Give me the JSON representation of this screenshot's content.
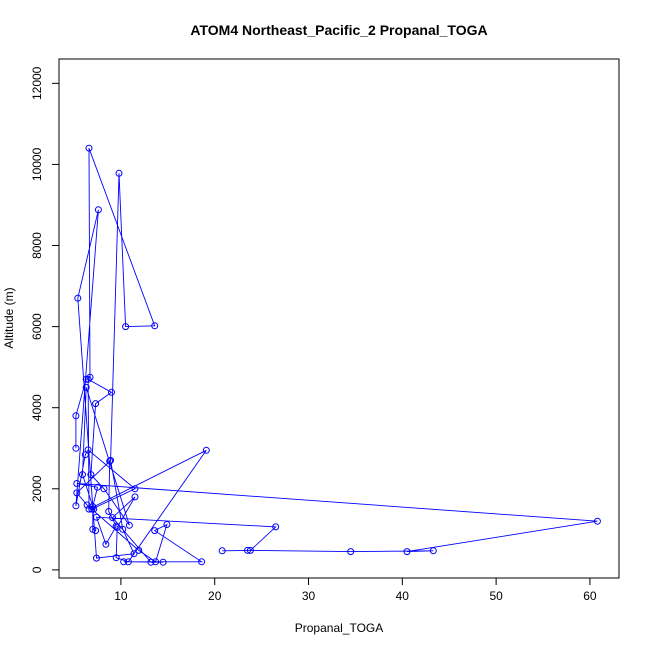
{
  "chart_data": {
    "type": "line",
    "title": "ATOM4 Northeast_Pacific_2 Propanal_TOGA",
    "xlabel": "Propanal_TOGA",
    "ylabel": "Altitude (m)",
    "xlim": [
      3.4,
      63.1
    ],
    "ylim": [
      -200,
      12600
    ],
    "xticks": [
      10,
      20,
      30,
      40,
      50,
      60
    ],
    "yticks": [
      0,
      2000,
      4000,
      6000,
      8000,
      10000,
      12000
    ],
    "grid": false,
    "legend": "none",
    "color": "#0000ff",
    "marker": "open-circle",
    "series": [
      {
        "x": [
          5.2,
          5.2,
          6.3,
          6.7,
          6.6,
          13.6,
          10.5,
          9.8,
          8.9,
          10.2,
          11.4,
          7.4,
          5.4,
          7.6,
          5.2,
          6.2,
          6.5,
          11.5,
          6.9,
          11.9,
          13.7,
          14.9,
          13.6,
          18.6,
          10.3,
          14.5,
          13.2,
          9.1,
          11.5,
          9.6,
          9.5,
          10.8,
          19.1,
          6.6,
          6.5,
          9.0,
          7.3,
          6.8,
          8.2,
          10.9,
          6.3,
          5.9,
          7.1,
          6.4,
          5.3,
          8.8,
          8.7,
          9.5,
          8.4,
          7.4,
          26.5,
          23.8,
          20.8,
          23.5,
          34.5,
          43.3,
          40.5,
          60.8,
          5.3,
          7.5,
          7.0,
          7.0,
          7.3
        ],
        "y": [
          3000,
          3800,
          4700,
          4750,
          10400,
          6020,
          6000,
          9780,
          2700,
          1000,
          400,
          290,
          6700,
          8880,
          1580,
          2840,
          2960,
          2000,
          1500,
          480,
          200,
          1120,
          970,
          200,
          200,
          190,
          190,
          1290,
          1800,
          1050,
          300,
          200,
          2950,
          1500,
          4700,
          4380,
          4100,
          2350,
          2000,
          1100,
          4500,
          2350,
          1500,
          1600,
          1900,
          2680,
          1440,
          1080,
          630,
          1300,
          1060,
          480,
          470,
          480,
          450,
          470,
          450,
          1200,
          2130,
          2040,
          1560,
          1000,
          970
        ]
      }
    ]
  }
}
